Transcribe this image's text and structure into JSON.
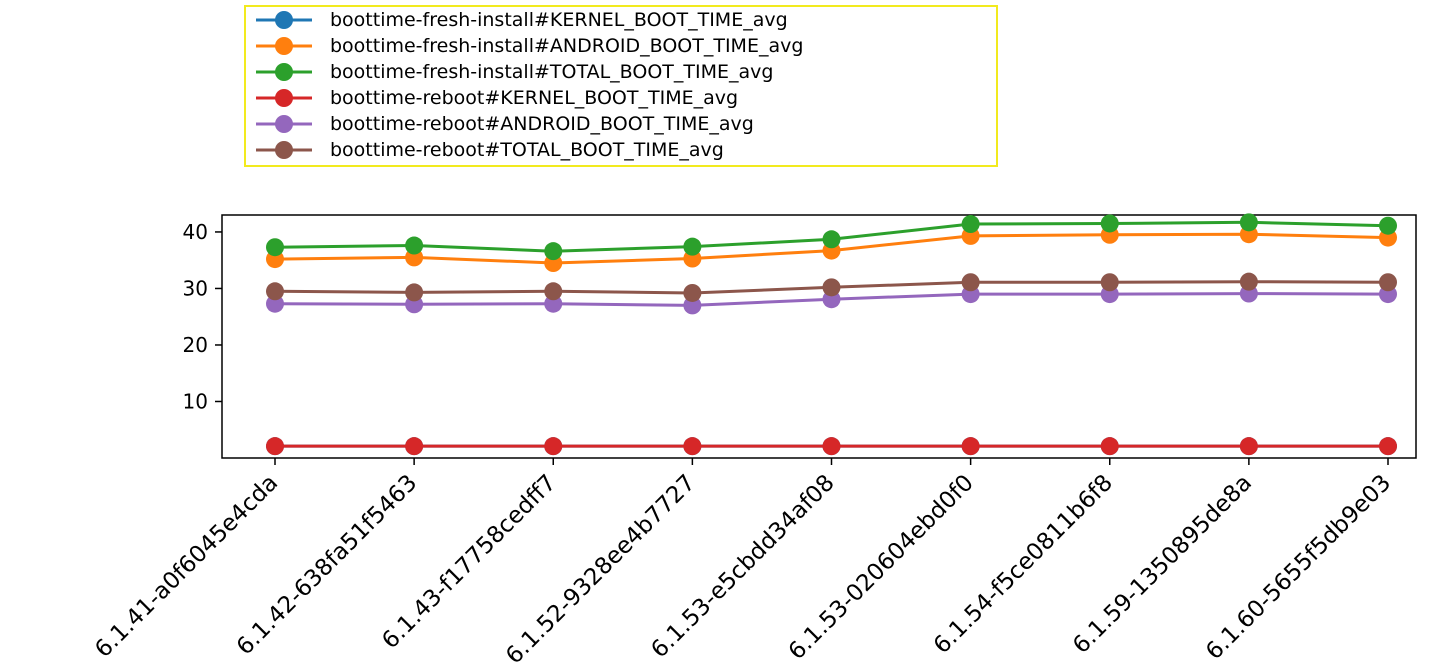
{
  "chart_data": {
    "type": "line",
    "title": "",
    "xlabel": "",
    "ylabel": "",
    "categories": [
      "6.1.41-a0f6045e4cda",
      "6.1.42-638fa51f5463",
      "6.1.43-f17758cedff7",
      "6.1.52-9328ee4b7727",
      "6.1.53-e5cbdd34af08",
      "6.1.53-020604ebd0f0",
      "6.1.54-f5ce0811b6f8",
      "6.1.59-1350895de8a",
      "6.1.60-5655f5db9e03"
    ],
    "y_ticks": [
      10,
      20,
      30,
      40
    ],
    "ylim": [
      0,
      43
    ],
    "grid": false,
    "legend_position": "top (above plot)",
    "series": [
      {
        "name": "boottime-fresh-install#KERNEL_BOOT_TIME_avg",
        "color": "#1f77b4",
        "values": [
          2.1,
          2.1,
          2.1,
          2.1,
          2.1,
          2.1,
          2.1,
          2.1,
          2.1
        ]
      },
      {
        "name": "boottime-fresh-install#ANDROID_BOOT_TIME_avg",
        "color": "#ff7f0e",
        "values": [
          35.2,
          35.5,
          34.5,
          35.3,
          36.7,
          39.3,
          39.5,
          39.6,
          39.0
        ]
      },
      {
        "name": "boottime-fresh-install#TOTAL_BOOT_TIME_avg",
        "color": "#2ca02c",
        "values": [
          37.3,
          37.6,
          36.6,
          37.4,
          38.7,
          41.4,
          41.5,
          41.7,
          41.1
        ]
      },
      {
        "name": "boottime-reboot#KERNEL_BOOT_TIME_avg",
        "color": "#d62728",
        "values": [
          2.1,
          2.1,
          2.1,
          2.1,
          2.1,
          2.1,
          2.1,
          2.1,
          2.1
        ]
      },
      {
        "name": "boottime-reboot#ANDROID_BOOT_TIME_avg",
        "color": "#9467bd",
        "values": [
          27.3,
          27.2,
          27.3,
          27.0,
          28.1,
          29.0,
          29.0,
          29.1,
          29.0
        ]
      },
      {
        "name": "boottime-reboot#TOTAL_BOOT_TIME_avg",
        "color": "#8c564b",
        "values": [
          29.5,
          29.3,
          29.5,
          29.2,
          30.2,
          31.1,
          31.1,
          31.2,
          31.1
        ]
      }
    ]
  }
}
